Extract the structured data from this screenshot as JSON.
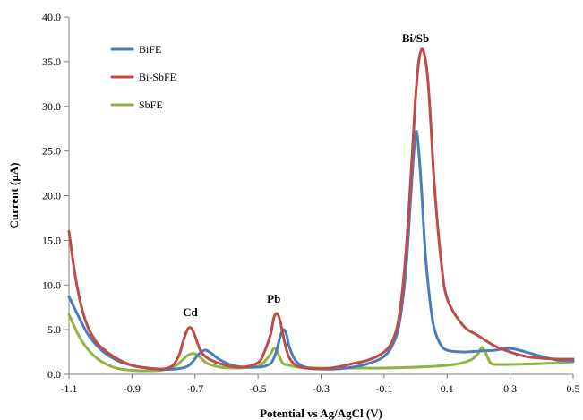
{
  "chart_data": {
    "type": "line",
    "xlabel": "Potential vs Ag/AgCl (V)",
    "ylabel": "Current (µA)",
    "xlim": [
      -1.1,
      0.5
    ],
    "ylim": [
      0.0,
      40.0
    ],
    "xticks": [
      -1.1,
      -0.9,
      -0.7,
      -0.5,
      -0.3,
      -0.1,
      0.1,
      0.3,
      0.5
    ],
    "xtick_labels": [
      "-1.1",
      "-0.9",
      "-0.7",
      "-0.5",
      "-0.3",
      "-0.1",
      "0.1",
      "0.3",
      "0.5"
    ],
    "yticks": [
      0,
      5,
      10,
      15,
      20,
      25,
      30,
      35,
      40
    ],
    "ytick_labels": [
      "0.0",
      "5.0",
      "10.0",
      "15.0",
      "20.0",
      "25.0",
      "30.0",
      "35.0",
      "40.0"
    ],
    "grid": false,
    "legend_position": "top-left",
    "annotations": [
      {
        "text": "Cd",
        "x": -0.715,
        "y": 6.5
      },
      {
        "text": "Pb",
        "x": -0.45,
        "y": 8.0
      },
      {
        "text": "Bi/Sb",
        "x": 0.0,
        "y": 37.2
      }
    ],
    "series": [
      {
        "name": "BiFE",
        "color": "#4a7ebb",
        "x": [
          -1.1,
          -1.07,
          -1.04,
          -1.0,
          -0.95,
          -0.9,
          -0.85,
          -0.8,
          -0.76,
          -0.73,
          -0.71,
          -0.69,
          -0.67,
          -0.65,
          -0.62,
          -0.58,
          -0.54,
          -0.5,
          -0.48,
          -0.46,
          -0.45,
          -0.44,
          -0.43,
          -0.42,
          -0.41,
          -0.4,
          -0.38,
          -0.35,
          -0.3,
          -0.25,
          -0.2,
          -0.15,
          -0.1,
          -0.07,
          -0.05,
          -0.03,
          -0.015,
          0.0,
          0.01,
          0.02,
          0.03,
          0.04,
          0.05,
          0.06,
          0.08,
          0.1,
          0.15,
          0.2,
          0.25,
          0.3,
          0.35,
          0.4,
          0.45,
          0.5
        ],
        "y": [
          8.7,
          6.5,
          4.5,
          2.8,
          1.6,
          1.0,
          0.7,
          0.55,
          0.6,
          0.8,
          1.3,
          2.2,
          2.7,
          2.4,
          1.6,
          1.0,
          0.8,
          0.8,
          0.9,
          1.2,
          1.8,
          2.8,
          4.2,
          5.0,
          4.5,
          3.0,
          1.5,
          0.8,
          0.6,
          0.6,
          0.8,
          1.2,
          2.0,
          3.5,
          6.0,
          12.0,
          20.0,
          27.0,
          25.0,
          20.0,
          14.0,
          10.0,
          7.0,
          5.0,
          3.3,
          2.7,
          2.5,
          2.6,
          2.7,
          2.9,
          2.5,
          2.0,
          1.6,
          1.5
        ]
      },
      {
        "name": "Bi-SbFE",
        "color": "#be4b48",
        "x": [
          -1.1,
          -1.08,
          -1.06,
          -1.04,
          -1.02,
          -1.0,
          -0.95,
          -0.9,
          -0.85,
          -0.8,
          -0.77,
          -0.75,
          -0.74,
          -0.73,
          -0.72,
          -0.71,
          -0.7,
          -0.69,
          -0.68,
          -0.66,
          -0.63,
          -0.6,
          -0.55,
          -0.5,
          -0.48,
          -0.46,
          -0.45,
          -0.44,
          -0.43,
          -0.42,
          -0.41,
          -0.4,
          -0.38,
          -0.35,
          -0.3,
          -0.25,
          -0.2,
          -0.15,
          -0.1,
          -0.07,
          -0.05,
          -0.03,
          -0.01,
          0.0,
          0.01,
          0.02,
          0.03,
          0.04,
          0.05,
          0.06,
          0.08,
          0.1,
          0.15,
          0.2,
          0.25,
          0.3,
          0.35,
          0.4,
          0.45,
          0.5
        ],
        "y": [
          16.0,
          11.0,
          7.5,
          5.3,
          4.0,
          3.1,
          1.8,
          1.0,
          0.7,
          0.6,
          1.0,
          2.2,
          3.4,
          4.5,
          5.2,
          5.1,
          4.3,
          3.3,
          2.5,
          1.8,
          1.3,
          1.0,
          0.8,
          1.3,
          2.5,
          4.5,
          6.3,
          6.8,
          6.0,
          4.3,
          2.8,
          1.8,
          1.0,
          0.7,
          0.6,
          0.8,
          1.2,
          1.6,
          2.5,
          4.0,
          7.0,
          14.0,
          25.0,
          31.0,
          35.0,
          36.4,
          35.5,
          32.5,
          27.0,
          21.0,
          13.0,
          8.5,
          5.5,
          4.3,
          3.2,
          2.5,
          2.0,
          1.8,
          1.7,
          1.7
        ]
      },
      {
        "name": "SbFE",
        "color": "#8fb347",
        "x": [
          -1.1,
          -1.07,
          -1.04,
          -1.0,
          -0.95,
          -0.9,
          -0.85,
          -0.8,
          -0.76,
          -0.74,
          -0.72,
          -0.7,
          -0.68,
          -0.66,
          -0.62,
          -0.58,
          -0.54,
          -0.5,
          -0.48,
          -0.46,
          -0.45,
          -0.44,
          -0.43,
          -0.42,
          -0.4,
          -0.37,
          -0.3,
          -0.2,
          -0.1,
          0.0,
          0.1,
          0.15,
          0.18,
          0.2,
          0.21,
          0.22,
          0.23,
          0.24,
          0.26,
          0.3,
          0.4,
          0.5
        ],
        "y": [
          6.7,
          4.4,
          2.8,
          1.5,
          0.7,
          0.45,
          0.4,
          0.5,
          1.0,
          1.6,
          2.2,
          2.3,
          1.8,
          1.2,
          0.8,
          0.7,
          0.75,
          0.9,
          1.4,
          2.3,
          2.9,
          2.6,
          1.8,
          1.2,
          1.0,
          0.8,
          0.7,
          0.7,
          0.7,
          0.8,
          1.0,
          1.3,
          1.7,
          2.4,
          3.0,
          2.6,
          1.8,
          1.2,
          1.1,
          1.1,
          1.2,
          1.4
        ]
      }
    ]
  }
}
